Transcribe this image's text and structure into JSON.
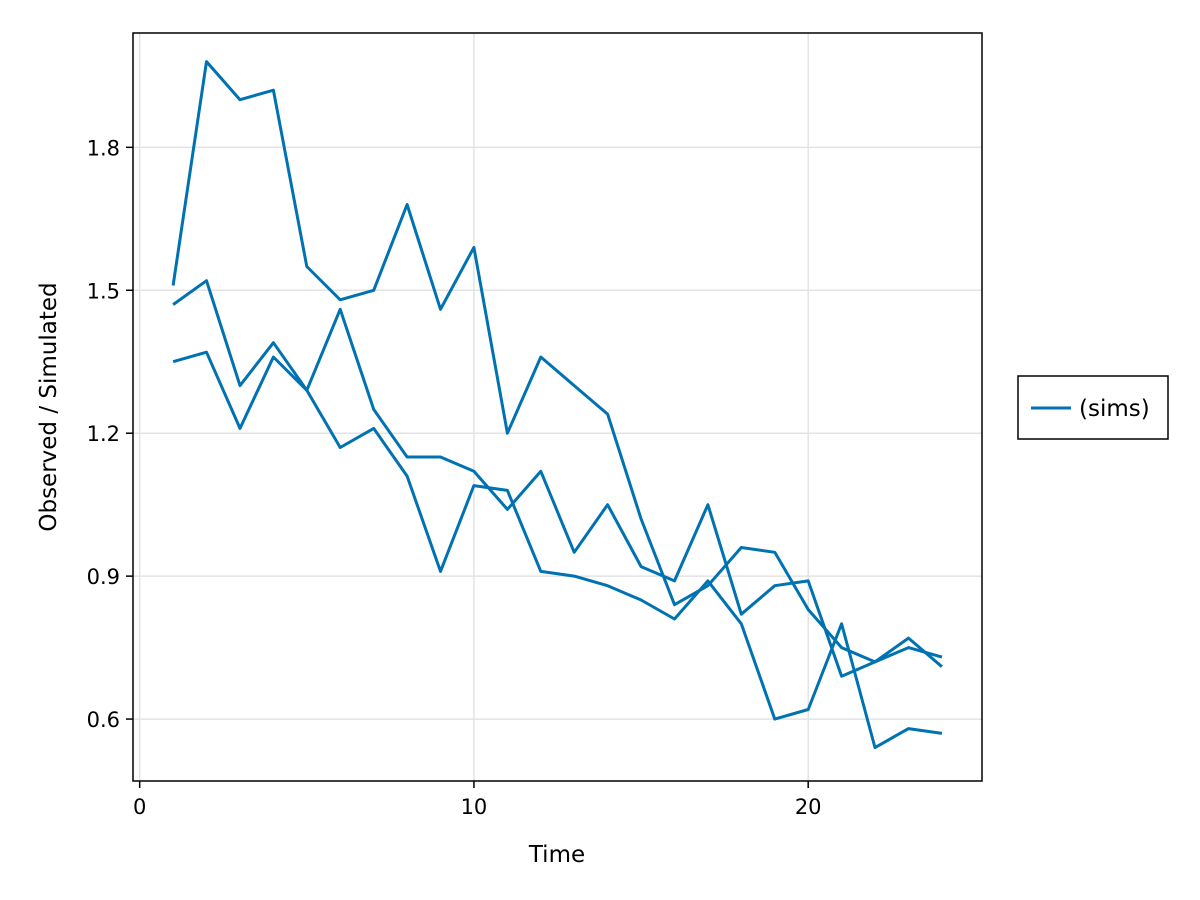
{
  "chart_data": {
    "type": "line",
    "title": "",
    "xlabel": "Time",
    "ylabel": "Observed / Simulated",
    "xlim": [
      -0.2,
      25.2
    ],
    "ylim": [
      0.47,
      2.04
    ],
    "xticks": [
      0,
      10,
      20
    ],
    "xtick_labels": [
      "0",
      "10",
      "20"
    ],
    "yticks": [
      0.6,
      0.9,
      1.2,
      1.5,
      1.8
    ],
    "ytick_labels": [
      "0.6",
      "0.9",
      "1.2",
      "1.5",
      "1.8"
    ],
    "grid": true,
    "legend": {
      "position": "right",
      "entries": [
        "(sims)"
      ]
    },
    "color": "#0072b2",
    "x": [
      1,
      2,
      3,
      4,
      5,
      6,
      7,
      8,
      9,
      10,
      11,
      12,
      13,
      14,
      15,
      16,
      17,
      18,
      19,
      20,
      21,
      22,
      23,
      24
    ],
    "series": [
      {
        "values": [
          1.51,
          1.98,
          1.9,
          1.92,
          1.55,
          1.48,
          1.5,
          1.68,
          1.46,
          1.59,
          1.2,
          1.36,
          1.3,
          1.24,
          1.02,
          0.84,
          0.88,
          0.96,
          0.95,
          0.83,
          0.75,
          0.72,
          0.75,
          0.73
        ]
      },
      {
        "values": [
          1.47,
          1.52,
          1.3,
          1.39,
          1.29,
          1.46,
          1.25,
          1.15,
          1.15,
          1.12,
          1.04,
          1.12,
          0.95,
          1.05,
          0.92,
          0.89,
          1.05,
          0.82,
          0.88,
          0.89,
          0.69,
          0.72,
          0.77,
          0.71
        ]
      },
      {
        "values": [
          1.35,
          1.37,
          1.21,
          1.36,
          1.29,
          1.17,
          1.21,
          1.11,
          0.91,
          1.09,
          1.08,
          0.91,
          0.9,
          0.88,
          0.85,
          0.81,
          0.89,
          0.8,
          0.6,
          0.62,
          0.8,
          0.54,
          0.58,
          0.57
        ]
      }
    ]
  }
}
